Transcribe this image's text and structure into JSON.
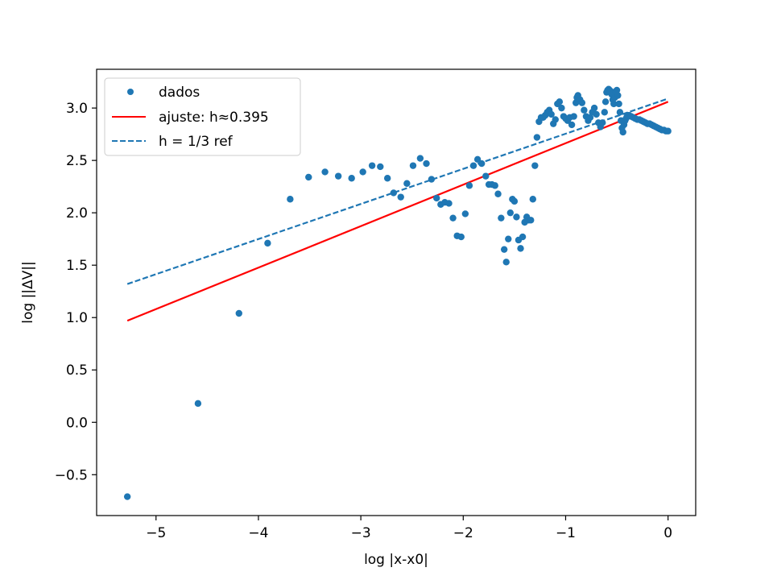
{
  "chart_data": {
    "type": "scatter",
    "title": "",
    "xlabel": "log |x-x0|",
    "ylabel": "log ||ΔV||",
    "xlim": [
      -5.58,
      0.27
    ],
    "ylim": [
      -0.89,
      3.37
    ],
    "xticks": [
      -5,
      -4,
      -3,
      -2,
      -1,
      0
    ],
    "yticks": [
      -0.5,
      0.0,
      0.5,
      1.0,
      1.5,
      2.0,
      2.5,
      3.0
    ],
    "xtick_labels": [
      "−5",
      "−4",
      "−3",
      "−2",
      "−1",
      "0"
    ],
    "ytick_labels": [
      "−0.5",
      "0.0",
      "0.5",
      "1.0",
      "1.5",
      "2.0",
      "2.5",
      "3.0"
    ],
    "grid": false,
    "legend_position": "top-left",
    "legend": [
      {
        "label": "dados",
        "style": "marker",
        "color": "#1f77b4"
      },
      {
        "label": "ajuste: h≈0.395",
        "style": "solid",
        "color": "#ff0000"
      },
      {
        "label": "h = 1/3 ref",
        "style": "dashed",
        "color": "#1f77b4"
      }
    ],
    "series": [
      {
        "name": "dados",
        "kind": "scatter",
        "color": "#1f77b4",
        "points": [
          [
            -5.28,
            -0.71
          ],
          [
            -4.59,
            0.18
          ],
          [
            -4.19,
            1.04
          ],
          [
            -3.91,
            1.71
          ],
          [
            -3.69,
            2.13
          ],
          [
            -3.51,
            2.34
          ],
          [
            -3.35,
            2.39
          ],
          [
            -3.22,
            2.35
          ],
          [
            -3.09,
            2.33
          ],
          [
            -2.98,
            2.39
          ],
          [
            -2.89,
            2.45
          ],
          [
            -2.81,
            2.44
          ],
          [
            -2.74,
            2.33
          ],
          [
            -2.68,
            2.19
          ],
          [
            -2.61,
            2.15
          ],
          [
            -2.55,
            2.28
          ],
          [
            -2.49,
            2.45
          ],
          [
            -2.42,
            2.52
          ],
          [
            -2.36,
            2.47
          ],
          [
            -2.31,
            2.32
          ],
          [
            -2.26,
            2.14
          ],
          [
            -2.22,
            2.08
          ],
          [
            -2.18,
            2.1
          ],
          [
            -2.14,
            2.09
          ],
          [
            -2.1,
            1.95
          ],
          [
            -2.06,
            1.78
          ],
          [
            -2.02,
            1.77
          ],
          [
            -1.98,
            1.99
          ],
          [
            -1.94,
            2.26
          ],
          [
            -1.9,
            2.45
          ],
          [
            -1.86,
            2.51
          ],
          [
            -1.82,
            2.47
          ],
          [
            -1.78,
            2.35
          ],
          [
            -1.75,
            2.27
          ],
          [
            -1.72,
            2.27
          ],
          [
            -1.69,
            2.26
          ],
          [
            -1.66,
            2.18
          ],
          [
            -1.63,
            1.95
          ],
          [
            -1.6,
            1.65
          ],
          [
            -1.58,
            1.53
          ],
          [
            -1.56,
            1.75
          ],
          [
            -1.54,
            2.0
          ],
          [
            -1.52,
            2.13
          ],
          [
            -1.5,
            2.11
          ],
          [
            -1.48,
            1.96
          ],
          [
            -1.46,
            1.74
          ],
          [
            -1.44,
            1.66
          ],
          [
            -1.42,
            1.77
          ],
          [
            -1.4,
            1.91
          ],
          [
            -1.38,
            1.96
          ],
          [
            -1.36,
            1.93
          ],
          [
            -1.34,
            1.93
          ],
          [
            -1.32,
            2.13
          ],
          [
            -1.3,
            2.45
          ],
          [
            -1.28,
            2.72
          ],
          [
            -1.26,
            2.87
          ],
          [
            -1.24,
            2.91
          ],
          [
            -1.22,
            2.91
          ],
          [
            -1.2,
            2.93
          ],
          [
            -1.18,
            2.96
          ],
          [
            -1.16,
            2.98
          ],
          [
            -1.14,
            2.94
          ],
          [
            -1.12,
            2.85
          ],
          [
            -1.1,
            2.89
          ],
          [
            -1.08,
            3.04
          ],
          [
            -1.06,
            3.06
          ],
          [
            -1.04,
            3.0
          ],
          [
            -1.02,
            2.92
          ],
          [
            -1.0,
            2.9
          ],
          [
            -0.98,
            2.88
          ],
          [
            -0.96,
            2.91
          ],
          [
            -0.94,
            2.84
          ],
          [
            -0.92,
            2.92
          ],
          [
            -0.9,
            3.05
          ],
          [
            -0.89,
            3.1
          ],
          [
            -0.88,
            3.12
          ],
          [
            -0.86,
            3.08
          ],
          [
            -0.84,
            3.05
          ],
          [
            -0.82,
            2.98
          ],
          [
            -0.8,
            2.92
          ],
          [
            -0.78,
            2.88
          ],
          [
            -0.76,
            2.91
          ],
          [
            -0.74,
            2.96
          ],
          [
            -0.72,
            3.0
          ],
          [
            -0.7,
            2.94
          ],
          [
            -0.68,
            2.86
          ],
          [
            -0.66,
            2.82
          ],
          [
            -0.64,
            2.86
          ],
          [
            -0.62,
            2.96
          ],
          [
            -0.61,
            3.06
          ],
          [
            -0.6,
            3.15
          ],
          [
            -0.59,
            3.17
          ],
          [
            -0.58,
            3.18
          ],
          [
            -0.57,
            3.17
          ],
          [
            -0.56,
            3.16
          ],
          [
            -0.55,
            3.13
          ],
          [
            -0.54,
            3.08
          ],
          [
            -0.53,
            3.04
          ],
          [
            -0.52,
            3.1
          ],
          [
            -0.51,
            3.16
          ],
          [
            -0.5,
            3.17
          ],
          [
            -0.49,
            3.12
          ],
          [
            -0.48,
            3.04
          ],
          [
            -0.47,
            2.96
          ],
          [
            -0.46,
            2.88
          ],
          [
            -0.45,
            2.81
          ],
          [
            -0.44,
            2.77
          ],
          [
            -0.43,
            2.84
          ],
          [
            -0.42,
            2.88
          ],
          [
            -0.41,
            2.9
          ],
          [
            -0.4,
            2.92
          ],
          [
            -0.39,
            2.93
          ],
          [
            -0.38,
            2.93
          ],
          [
            -0.36,
            2.92
          ],
          [
            -0.34,
            2.91
          ],
          [
            -0.32,
            2.9
          ],
          [
            -0.3,
            2.89
          ],
          [
            -0.28,
            2.89
          ],
          [
            -0.26,
            2.88
          ],
          [
            -0.24,
            2.87
          ],
          [
            -0.22,
            2.86
          ],
          [
            -0.2,
            2.85
          ],
          [
            -0.18,
            2.85
          ],
          [
            -0.16,
            2.84
          ],
          [
            -0.14,
            2.83
          ],
          [
            -0.12,
            2.82
          ],
          [
            -0.1,
            2.81
          ],
          [
            -0.08,
            2.8
          ],
          [
            -0.06,
            2.79
          ],
          [
            -0.04,
            2.79
          ],
          [
            -0.02,
            2.78
          ],
          [
            0.0,
            2.78
          ]
        ]
      },
      {
        "name": "ajuste: h≈0.395",
        "kind": "line",
        "style": "solid",
        "color": "#ff0000",
        "points": [
          [
            -5.28,
            0.97
          ],
          [
            0.0,
            3.06
          ]
        ]
      },
      {
        "name": "h = 1/3 ref",
        "kind": "line",
        "style": "dashed",
        "color": "#1f77b4",
        "points": [
          [
            -5.28,
            1.32
          ],
          [
            0.0,
            3.09
          ]
        ]
      }
    ]
  }
}
